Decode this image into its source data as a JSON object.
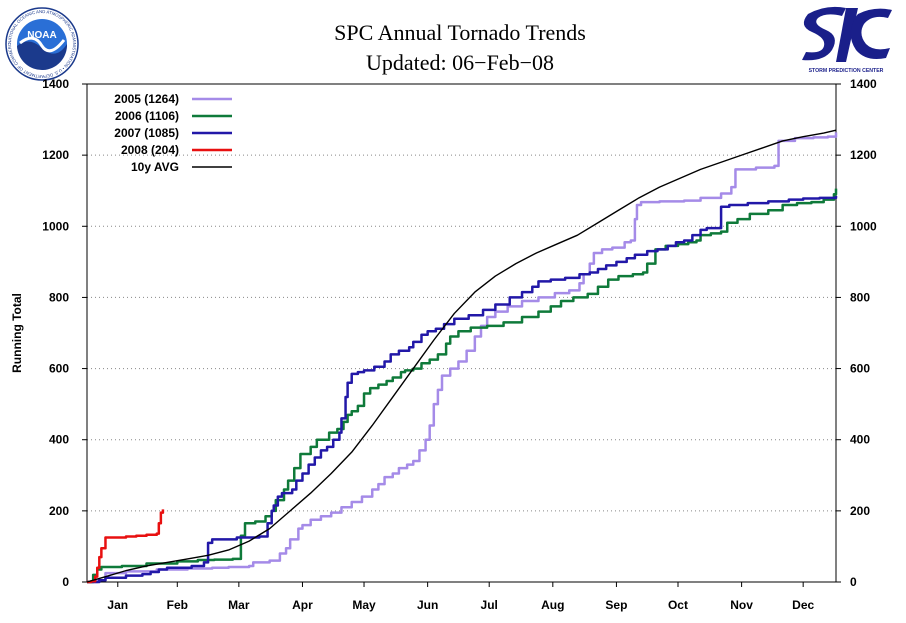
{
  "header": {
    "title": "SPC Annual Tornado Trends",
    "subtitle": "Updated: 06−Feb−08",
    "left_logo": {
      "text": "NOAA",
      "ring_text": "NATIONAL OCEANIC AND ATMOSPHERIC ADMINISTRATION • U.S. DEPARTMENT OF COMMERCE",
      "colors": {
        "sky": "#2a6fd6",
        "sea": "#1b3a8c",
        "bird": "#ffffff"
      }
    },
    "right_logo": {
      "text": "STORM PREDICTION CENTER",
      "color": "#1a1f8a"
    }
  },
  "chart_data": {
    "type": "line",
    "title": "",
    "ylabel": "Running Total",
    "xlabel": "",
    "ylim": [
      0,
      1400
    ],
    "xlim": [
      1,
      366
    ],
    "yticks": [
      0,
      200,
      400,
      600,
      800,
      1000,
      1200,
      1400
    ],
    "grid": "horizontal-dotted",
    "legend_position": "top-left",
    "months": [
      {
        "label": "Jan",
        "day": 16
      },
      {
        "label": "Feb",
        "day": 45
      },
      {
        "label": "Mar",
        "day": 75
      },
      {
        "label": "Apr",
        "day": 106
      },
      {
        "label": "May",
        "day": 136
      },
      {
        "label": "Jun",
        "day": 167
      },
      {
        "label": "Jul",
        "day": 197
      },
      {
        "label": "Aug",
        "day": 228
      },
      {
        "label": "Sep",
        "day": 259
      },
      {
        "label": "Oct",
        "day": 289
      },
      {
        "label": "Nov",
        "day": 320
      },
      {
        "label": "Dec",
        "day": 350
      }
    ],
    "series": [
      {
        "name": "2005 (1264)",
        "color": "#a58be8",
        "width": 2.5,
        "step": true,
        "points": [
          [
            1,
            0
          ],
          [
            6,
            5
          ],
          [
            10,
            25
          ],
          [
            20,
            30
          ],
          [
            35,
            35
          ],
          [
            50,
            38
          ],
          [
            62,
            40
          ],
          [
            70,
            42
          ],
          [
            80,
            45
          ],
          [
            82,
            55
          ],
          [
            90,
            60
          ],
          [
            95,
            80
          ],
          [
            98,
            95
          ],
          [
            100,
            120
          ],
          [
            104,
            150
          ],
          [
            106,
            160
          ],
          [
            110,
            175
          ],
          [
            115,
            185
          ],
          [
            120,
            195
          ],
          [
            125,
            210
          ],
          [
            130,
            225
          ],
          [
            135,
            240
          ],
          [
            140,
            260
          ],
          [
            143,
            275
          ],
          [
            146,
            295
          ],
          [
            150,
            305
          ],
          [
            153,
            320
          ],
          [
            157,
            330
          ],
          [
            160,
            340
          ],
          [
            163,
            370
          ],
          [
            166,
            400
          ],
          [
            168,
            440
          ],
          [
            170,
            500
          ],
          [
            172,
            540
          ],
          [
            174,
            580
          ],
          [
            178,
            600
          ],
          [
            182,
            620
          ],
          [
            186,
            650
          ],
          [
            190,
            690
          ],
          [
            193,
            720
          ],
          [
            196,
            745
          ],
          [
            200,
            760
          ],
          [
            206,
            775
          ],
          [
            213,
            790
          ],
          [
            221,
            800
          ],
          [
            229,
            812
          ],
          [
            236,
            820
          ],
          [
            241,
            840
          ],
          [
            243,
            865
          ],
          [
            246,
            895
          ],
          [
            248,
            925
          ],
          [
            252,
            935
          ],
          [
            257,
            940
          ],
          [
            263,
            955
          ],
          [
            266,
            960
          ],
          [
            268,
            1020
          ],
          [
            269,
            1060
          ],
          [
            271,
            1068
          ],
          [
            280,
            1070
          ],
          [
            292,
            1072
          ],
          [
            300,
            1080
          ],
          [
            310,
            1092
          ],
          [
            315,
            1110
          ],
          [
            317,
            1160
          ],
          [
            327,
            1165
          ],
          [
            336,
            1170
          ],
          [
            338,
            1240
          ],
          [
            346,
            1248
          ],
          [
            355,
            1250
          ],
          [
            362,
            1252
          ],
          [
            366,
            1264
          ]
        ]
      },
      {
        "name": "2006 (1106)",
        "color": "#0f7a3a",
        "width": 2.5,
        "step": true,
        "points": [
          [
            1,
            0
          ],
          [
            4,
            20
          ],
          [
            6,
            35
          ],
          [
            8,
            42
          ],
          [
            18,
            45
          ],
          [
            30,
            52
          ],
          [
            45,
            58
          ],
          [
            55,
            62
          ],
          [
            63,
            63
          ],
          [
            72,
            65
          ],
          [
            76,
            130
          ],
          [
            78,
            165
          ],
          [
            83,
            170
          ],
          [
            88,
            185
          ],
          [
            91,
            200
          ],
          [
            93,
            230
          ],
          [
            97,
            260
          ],
          [
            99,
            285
          ],
          [
            102,
            320
          ],
          [
            105,
            360
          ],
          [
            110,
            380
          ],
          [
            113,
            400
          ],
          [
            119,
            420
          ],
          [
            123,
            430
          ],
          [
            126,
            450
          ],
          [
            128,
            470
          ],
          [
            130,
            480
          ],
          [
            133,
            495
          ],
          [
            136,
            530
          ],
          [
            139,
            545
          ],
          [
            143,
            555
          ],
          [
            147,
            565
          ],
          [
            150,
            575
          ],
          [
            154,
            590
          ],
          [
            156,
            595
          ],
          [
            160,
            600
          ],
          [
            164,
            615
          ],
          [
            168,
            625
          ],
          [
            172,
            640
          ],
          [
            176,
            670
          ],
          [
            178,
            690
          ],
          [
            182,
            705
          ],
          [
            188,
            715
          ],
          [
            196,
            720
          ],
          [
            204,
            730
          ],
          [
            213,
            745
          ],
          [
            221,
            760
          ],
          [
            227,
            775
          ],
          [
            232,
            790
          ],
          [
            238,
            800
          ],
          [
            245,
            810
          ],
          [
            250,
            830
          ],
          [
            255,
            850
          ],
          [
            260,
            860
          ],
          [
            267,
            865
          ],
          [
            272,
            870
          ],
          [
            274,
            895
          ],
          [
            278,
            935
          ],
          [
            283,
            945
          ],
          [
            289,
            950
          ],
          [
            294,
            955
          ],
          [
            298,
            960
          ],
          [
            300,
            975
          ],
          [
            305,
            980
          ],
          [
            310,
            985
          ],
          [
            313,
            1010
          ],
          [
            318,
            1020
          ],
          [
            324,
            1035
          ],
          [
            333,
            1045
          ],
          [
            340,
            1060
          ],
          [
            347,
            1065
          ],
          [
            354,
            1068
          ],
          [
            360,
            1075
          ],
          [
            365,
            1090
          ],
          [
            366,
            1106
          ]
        ]
      },
      {
        "name": "2007 (1085)",
        "color": "#2218a8",
        "width": 2.5,
        "step": true,
        "points": [
          [
            1,
            0
          ],
          [
            7,
            5
          ],
          [
            10,
            12
          ],
          [
            20,
            18
          ],
          [
            28,
            22
          ],
          [
            32,
            28
          ],
          [
            36,
            35
          ],
          [
            40,
            40
          ],
          [
            52,
            45
          ],
          [
            58,
            55
          ],
          [
            60,
            110
          ],
          [
            62,
            120
          ],
          [
            74,
            125
          ],
          [
            85,
            128
          ],
          [
            89,
            165
          ],
          [
            91,
            200
          ],
          [
            92,
            215
          ],
          [
            94,
            240
          ],
          [
            96,
            250
          ],
          [
            101,
            260
          ],
          [
            103,
            285
          ],
          [
            106,
            305
          ],
          [
            109,
            330
          ],
          [
            112,
            350
          ],
          [
            115,
            370
          ],
          [
            118,
            380
          ],
          [
            121,
            400
          ],
          [
            124,
            420
          ],
          [
            125,
            460
          ],
          [
            127,
            520
          ],
          [
            128,
            560
          ],
          [
            130,
            585
          ],
          [
            133,
            590
          ],
          [
            136,
            595
          ],
          [
            141,
            605
          ],
          [
            146,
            620
          ],
          [
            149,
            640
          ],
          [
            153,
            650
          ],
          [
            158,
            660
          ],
          [
            160,
            675
          ],
          [
            164,
            695
          ],
          [
            167,
            705
          ],
          [
            171,
            712
          ],
          [
            175,
            725
          ],
          [
            180,
            740
          ],
          [
            187,
            750
          ],
          [
            194,
            765
          ],
          [
            200,
            780
          ],
          [
            207,
            800
          ],
          [
            213,
            815
          ],
          [
            218,
            830
          ],
          [
            221,
            845
          ],
          [
            227,
            850
          ],
          [
            234,
            855
          ],
          [
            241,
            865
          ],
          [
            246,
            870
          ],
          [
            250,
            880
          ],
          [
            254,
            890
          ],
          [
            259,
            900
          ],
          [
            264,
            910
          ],
          [
            268,
            920
          ],
          [
            274,
            930
          ],
          [
            279,
            935
          ],
          [
            284,
            945
          ],
          [
            288,
            955
          ],
          [
            292,
            960
          ],
          [
            296,
            975
          ],
          [
            300,
            990
          ],
          [
            303,
            995
          ],
          [
            310,
            1055
          ],
          [
            314,
            1060
          ],
          [
            323,
            1065
          ],
          [
            333,
            1070
          ],
          [
            343,
            1075
          ],
          [
            350,
            1078
          ],
          [
            358,
            1080
          ],
          [
            366,
            1085
          ]
        ]
      },
      {
        "name": "2008 (204)",
        "color": "#e81010",
        "width": 2.5,
        "step": true,
        "points": [
          [
            1,
            0
          ],
          [
            3,
            2
          ],
          [
            5,
            15
          ],
          [
            6,
            40
          ],
          [
            7,
            70
          ],
          [
            8,
            95
          ],
          [
            10,
            125
          ],
          [
            20,
            128
          ],
          [
            25,
            130
          ],
          [
            30,
            133
          ],
          [
            35,
            136
          ],
          [
            36,
            165
          ],
          [
            37,
            195
          ],
          [
            38,
            204
          ]
        ]
      },
      {
        "name": "10y AVG",
        "color": "#000000",
        "width": 1.4,
        "step": false,
        "points": [
          [
            1,
            0
          ],
          [
            10,
            15
          ],
          [
            20,
            32
          ],
          [
            30,
            45
          ],
          [
            40,
            55
          ],
          [
            50,
            65
          ],
          [
            60,
            75
          ],
          [
            70,
            90
          ],
          [
            80,
            115
          ],
          [
            90,
            150
          ],
          [
            100,
            200
          ],
          [
            110,
            250
          ],
          [
            120,
            305
          ],
          [
            130,
            365
          ],
          [
            140,
            440
          ],
          [
            150,
            520
          ],
          [
            160,
            600
          ],
          [
            170,
            680
          ],
          [
            180,
            755
          ],
          [
            190,
            815
          ],
          [
            200,
            860
          ],
          [
            210,
            895
          ],
          [
            220,
            925
          ],
          [
            230,
            950
          ],
          [
            240,
            975
          ],
          [
            250,
            1010
          ],
          [
            260,
            1045
          ],
          [
            270,
            1080
          ],
          [
            280,
            1110
          ],
          [
            290,
            1135
          ],
          [
            300,
            1160
          ],
          [
            310,
            1180
          ],
          [
            320,
            1200
          ],
          [
            330,
            1220
          ],
          [
            340,
            1240
          ],
          [
            350,
            1252
          ],
          [
            360,
            1262
          ],
          [
            366,
            1270
          ]
        ]
      }
    ]
  }
}
